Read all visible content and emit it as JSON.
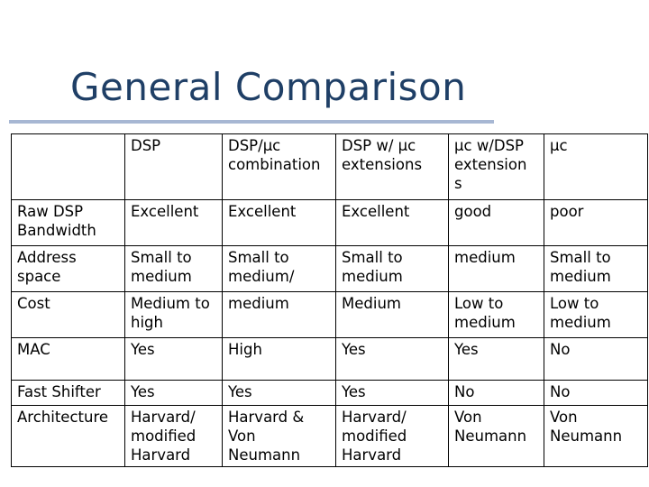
{
  "slide": {
    "title": "General Comparison"
  },
  "table": {
    "headers": [
      "",
      "DSP",
      "DSP/μc combination",
      "DSP w/ μc extensions",
      "μc w/DSP extension s",
      "μc"
    ],
    "rows": [
      [
        "Raw DSP Bandwidth",
        "Excellent",
        "Excellent",
        "Excellent",
        "good",
        "poor"
      ],
      [
        "Address space",
        "Small to medium",
        "Small to medium/",
        "Small to medium",
        "medium",
        "Small to medium"
      ],
      [
        "Cost",
        "Medium to high",
        "medium",
        "Medium",
        "Low to medium",
        "Low to medium"
      ],
      [
        "MAC",
        "Yes",
        "High",
        "Yes",
        "Yes",
        "No"
      ],
      [
        "Fast Shifter",
        "Yes",
        "Yes",
        "Yes",
        "No",
        "No"
      ],
      [
        "Architecture",
        "Harvard/ modified Harvard",
        "Harvard & Von Neumann",
        "Harvard/ modified Harvard",
        "Von Neumann",
        "Von Neumann"
      ]
    ]
  }
}
